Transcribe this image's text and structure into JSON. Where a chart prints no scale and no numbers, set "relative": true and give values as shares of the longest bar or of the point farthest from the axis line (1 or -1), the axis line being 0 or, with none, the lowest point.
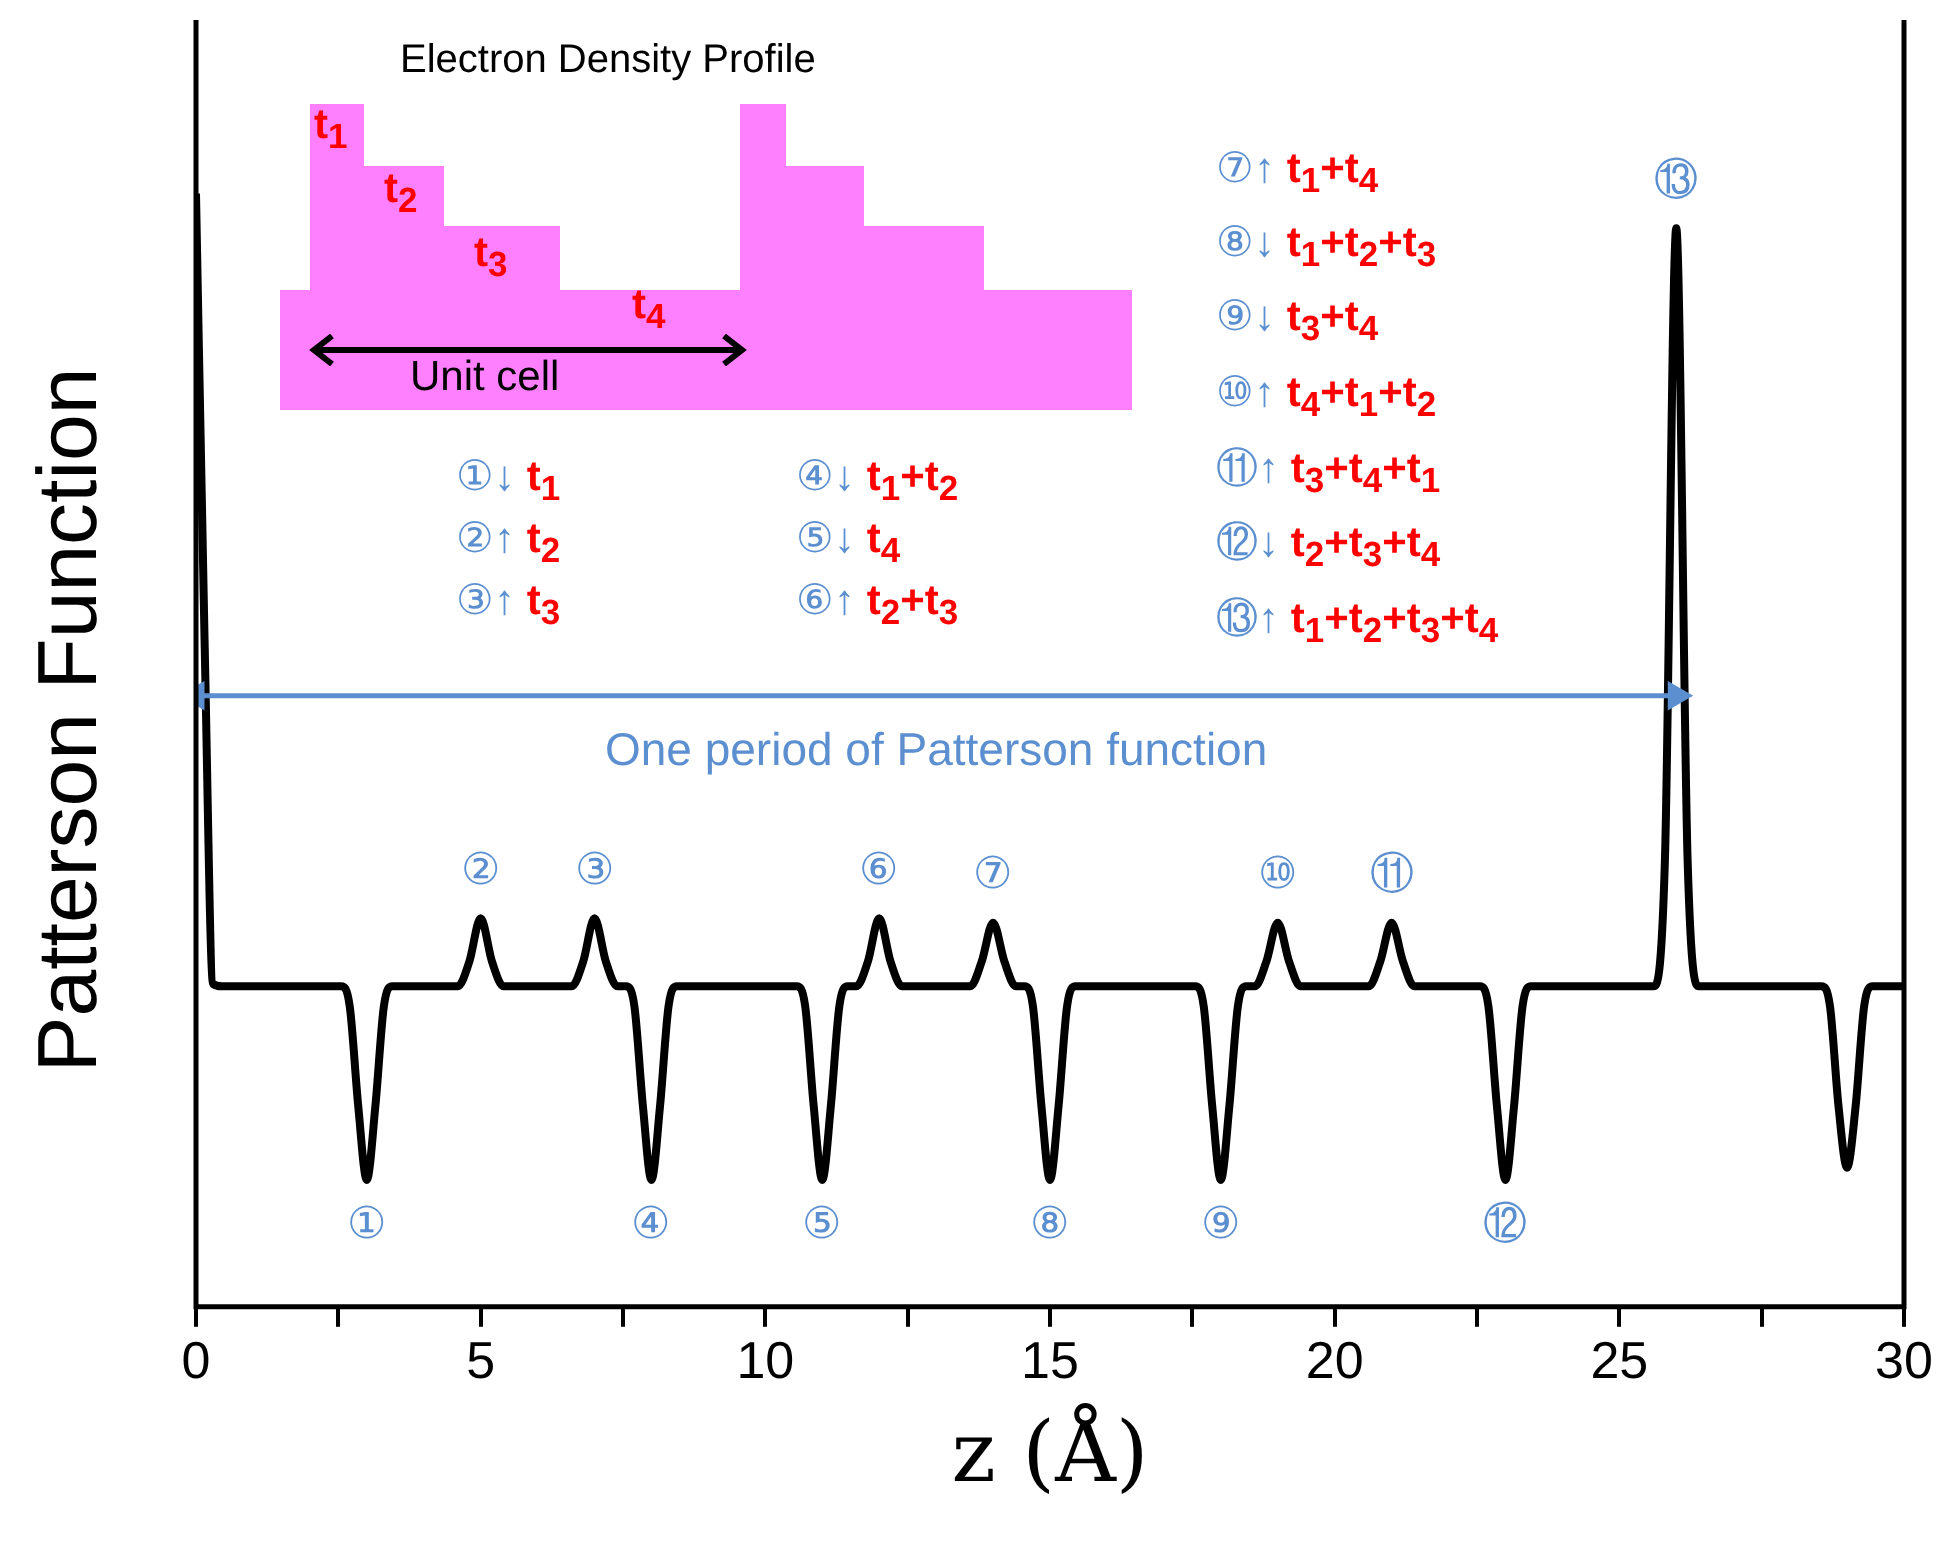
{
  "chart_data": {
    "type": "line",
    "relative": true,
    "xlabel": "z (Å)",
    "ylabel": "Patterson Function",
    "xlim": [
      0,
      30
    ],
    "xticks": [
      0,
      {
        "value": 2.5,
        "label": null
      },
      5,
      {
        "value": 7.5,
        "label": null
      },
      10,
      {
        "value": 12.5,
        "label": null
      },
      15,
      {
        "value": 17.5,
        "label": null
      },
      20,
      {
        "value": 22.5,
        "label": null
      },
      25,
      {
        "value": 27.5,
        "label": null
      },
      30
    ],
    "marker": "none",
    "line_style": "solid",
    "legend": false,
    "series": [
      {
        "type": "line",
        "color": "#5b8fd0",
        "marker": "triangle",
        "x": [
          0,
          26
        ],
        "values": [
          0.549,
          0.549
        ]
      },
      {
        "color": "#000000",
        "x": [
          0,
          0.15,
          0.3,
          0.45,
          2.55,
          2.7,
          2.85,
          3,
          3.15,
          3.3,
          3.45,
          4.6,
          4.8,
          5,
          5.2,
          5.4,
          6.6,
          6.8,
          7,
          7.2,
          7.4,
          7.55,
          7.7,
          7.85,
          8,
          8.15,
          8.3,
          8.45,
          10.55,
          10.7,
          10.85,
          11,
          11.15,
          11.3,
          11.45,
          11.6,
          11.8,
          12,
          12.2,
          12.4,
          13.6,
          13.8,
          14,
          14.2,
          14.4,
          14.55,
          14.7,
          14.85,
          15,
          15.15,
          15.3,
          15.45,
          17.55,
          17.7,
          17.85,
          18,
          18.15,
          18.3,
          18.45,
          18.6,
          18.8,
          19,
          19.2,
          19.4,
          20.6,
          20.8,
          21,
          21.2,
          21.4,
          22.55,
          22.7,
          22.85,
          23,
          23.15,
          23.3,
          23.45,
          25.6,
          25.8,
          26,
          26.2,
          26.4,
          28.55,
          28.7,
          28.85,
          29,
          29.15,
          29.3,
          29.45,
          30
        ],
        "values": [
          1,
          0.6,
          0.29,
          0.288,
          0.288,
          0.27,
          0.18,
          0.114,
          0.18,
          0.27,
          0.288,
          0.288,
          0.31,
          0.349,
          0.31,
          0.288,
          0.288,
          0.31,
          0.349,
          0.31,
          0.288,
          0.288,
          0.27,
          0.18,
          0.114,
          0.18,
          0.27,
          0.288,
          0.288,
          0.27,
          0.18,
          0.114,
          0.18,
          0.27,
          0.288,
          0.288,
          0.31,
          0.349,
          0.31,
          0.288,
          0.288,
          0.31,
          0.345,
          0.31,
          0.288,
          0.288,
          0.27,
          0.18,
          0.114,
          0.18,
          0.27,
          0.288,
          0.288,
          0.27,
          0.18,
          0.114,
          0.18,
          0.27,
          0.288,
          0.288,
          0.31,
          0.345,
          0.31,
          0.288,
          0.288,
          0.31,
          0.345,
          0.31,
          0.288,
          0.288,
          0.27,
          0.18,
          0.114,
          0.18,
          0.27,
          0.288,
          0.288,
          0.4,
          0.969,
          0.4,
          0.288,
          0.288,
          0.27,
          0.18,
          0.125,
          0.18,
          0.27,
          0.288,
          0.288
        ]
      }
    ],
    "annotations": [
      "Electron Density Profile",
      "t$_{1}$",
      "t$_{2}$",
      "t$_{3}$",
      "t$_{4}$",
      "Unit cell",
      "①↓ t$_{1}$",
      "②↑ t$_{2}$",
      "③↑ t$_{3}$",
      "④↓ t$_{1}$+t$_{2}$",
      "⑤↓ t$_{4}$",
      "⑥↑ t$_{2}$+t$_{3}$",
      "⑦↑ t$_{1}$+t$_{4}$",
      "⑧↓ t$_{1}$+t$_{2}$+t$_{3}$",
      "⑨↓ t$_{3}$+t$_{4}$",
      "⑩↑ t$_{4}$+t$_{1}$+t$_{2}$",
      "⑪↑ t$_{3}$+t$_{4}$+t$_{1}$",
      "⑫↓ t$_{2}$+t$_{3}$+t$_{4}$",
      "⑬↑ t$_{1}$+t$_{2}$+t$_{3}$+t$_{4}$",
      {
        "text": "①",
        "x": 3,
        "y": 0.114
      },
      {
        "text": "②",
        "x": 5,
        "y": 0.349
      },
      {
        "text": "③",
        "x": 7,
        "y": 0.349
      },
      {
        "text": "④",
        "x": 8,
        "y": 0.114
      },
      {
        "text": "⑤",
        "x": 11,
        "y": 0.114
      },
      {
        "text": "⑥",
        "x": 12,
        "y": 0.349
      },
      {
        "text": "⑦",
        "x": 14,
        "y": 0.345
      },
      {
        "text": "⑧",
        "x": 15,
        "y": 0.114
      },
      {
        "text": "⑨",
        "x": 18,
        "y": 0.114
      },
      {
        "text": "⑩",
        "x": 19,
        "y": 0.345
      },
      {
        "text": "⑪",
        "x": 21,
        "y": 0.345
      },
      {
        "text": "⑫",
        "x": 23,
        "y": 0.114
      },
      {
        "text": "⑬",
        "x": 26,
        "y": 0.969
      },
      {
        "text": "One period of Patterson function",
        "x": 13,
        "y": 0.549
      }
    ]
  }
}
